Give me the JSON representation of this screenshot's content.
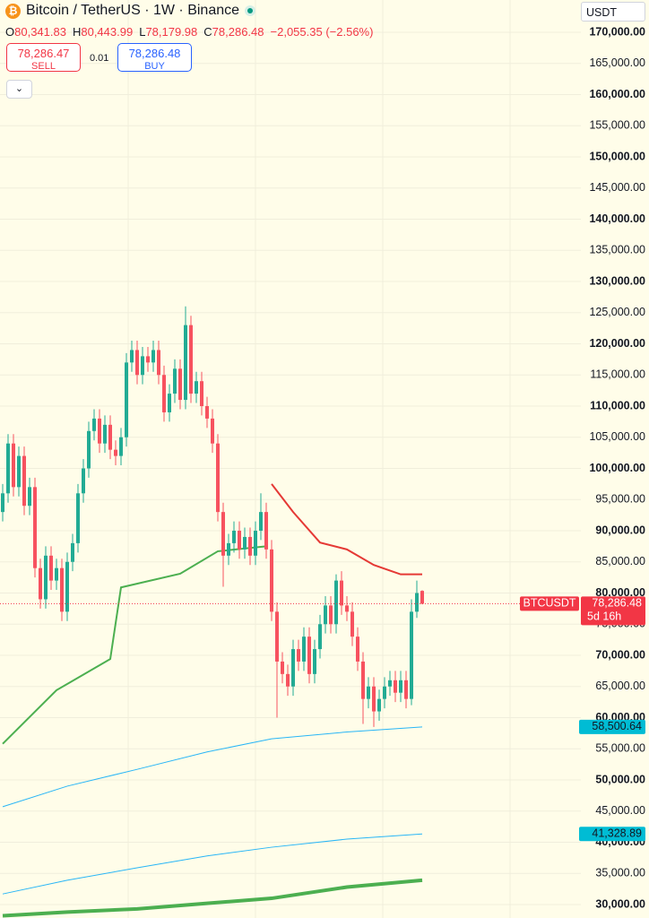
{
  "header": {
    "symbol": "Bitcoin / TetherUS · 1W · Binance",
    "ohlc": [
      {
        "label": "O",
        "value": "80,341.83"
      },
      {
        "label": "H",
        "value": "80,443.99"
      },
      {
        "label": "L",
        "value": "78,179.98"
      },
      {
        "label": "C",
        "value": "78,286.48"
      }
    ],
    "change": "−2,055.35 (−2.56%)"
  },
  "order": {
    "sell_price": "78,286.47",
    "sell_label": "SELL",
    "spread": "0.01",
    "buy_price": "78,286.48",
    "buy_label": "BUY"
  },
  "currency": "USDT",
  "chart_data": {
    "type": "candlestick",
    "up_color": "#22ab94",
    "down_color": "#f7525f",
    "grid": true,
    "open": [
      93000,
      96000,
      104000,
      97000,
      102000,
      94000,
      97000,
      84000,
      79000,
      86000,
      82000,
      84000,
      77000,
      85000,
      88000,
      96000,
      100000,
      106000,
      108000,
      104000,
      107000,
      103000,
      102000,
      105000,
      117000,
      119000,
      115000,
      118000,
      117000,
      119000,
      115000,
      109000,
      112000,
      116000,
      111000,
      123000,
      112000,
      114000,
      110000,
      108000,
      104000,
      93000,
      86000,
      88000,
      90000,
      87000,
      89000,
      86000,
      90000,
      93000,
      87000,
      77000,
      69000,
      67000,
      65000,
      71000,
      69000,
      73000,
      67000,
      71000,
      75000,
      78000,
      75000,
      82000,
      78000,
      77000,
      73000,
      69000,
      63000,
      65000,
      61000,
      63000,
      65000,
      66000,
      64000,
      66000,
      63000,
      77000,
      80341.83
    ],
    "high": [
      97500,
      105500,
      105500,
      103500,
      103500,
      98500,
      98500,
      85500,
      87500,
      87500,
      85500,
      85500,
      86500,
      89500,
      97500,
      101500,
      107500,
      109500,
      109500,
      108500,
      108500,
      104500,
      106500,
      118500,
      120500,
      120500,
      119500,
      119500,
      120500,
      120500,
      116500,
      113500,
      117500,
      117500,
      126000,
      124500,
      115500,
      115500,
      111500,
      109500,
      105500,
      94500,
      89500,
      91500,
      91500,
      90500,
      90500,
      91500,
      96000,
      94500,
      88500,
      78500,
      70500,
      68500,
      72500,
      72500,
      74500,
      74500,
      72500,
      76500,
      79500,
      79500,
      83000,
      83500,
      79500,
      78500,
      74500,
      70500,
      66500,
      66500,
      64500,
      66500,
      67500,
      67500,
      67500,
      67500,
      79000,
      82000,
      80443.99
    ],
    "low": [
      91500,
      94500,
      95500,
      95500,
      92500,
      92500,
      82500,
      77500,
      77500,
      80500,
      80500,
      75500,
      75500,
      83500,
      86500,
      94500,
      98500,
      104500,
      102500,
      102500,
      101500,
      100500,
      100500,
      103500,
      115500,
      113500,
      113500,
      115500,
      115500,
      113500,
      107500,
      107500,
      110500,
      109500,
      109500,
      110500,
      110500,
      108500,
      106500,
      102500,
      91500,
      81000,
      84500,
      86500,
      85500,
      85500,
      84500,
      84500,
      88500,
      85500,
      75500,
      60000,
      65500,
      63500,
      63500,
      67500,
      67500,
      65500,
      65500,
      69500,
      73500,
      73500,
      73500,
      76500,
      75500,
      71500,
      67500,
      59000,
      61500,
      58500,
      59500,
      61500,
      63500,
      62500,
      62500,
      61500,
      62000,
      76000,
      78179.98
    ],
    "close": [
      96000,
      104000,
      97000,
      102000,
      94000,
      97000,
      84000,
      79000,
      86000,
      82000,
      84000,
      77000,
      85000,
      88000,
      96000,
      100000,
      106000,
      108000,
      104000,
      107000,
      103000,
      102000,
      105000,
      117000,
      119000,
      115000,
      118000,
      117000,
      119000,
      115000,
      109000,
      112000,
      116000,
      111000,
      123000,
      112000,
      114000,
      110000,
      108000,
      104000,
      93000,
      86000,
      88000,
      90000,
      87000,
      89000,
      86000,
      90000,
      93000,
      87000,
      77000,
      69000,
      67000,
      65000,
      71000,
      69000,
      73000,
      67000,
      71000,
      75000,
      78000,
      75000,
      82000,
      78000,
      77000,
      73000,
      69000,
      63000,
      65000,
      61000,
      63000,
      65000,
      66000,
      64000,
      66000,
      63000,
      77000,
      80000,
      78286.48
    ],
    "ylim": [
      30000,
      170000
    ],
    "yticks": [
      {
        "value": 170000,
        "label": "170,000.00"
      },
      {
        "value": 165000,
        "label": "165,000.00"
      },
      {
        "value": 160000,
        "label": "160,000.00"
      },
      {
        "value": 155000,
        "label": "155,000.00"
      },
      {
        "value": 150000,
        "label": "150,000.00"
      },
      {
        "value": 145000,
        "label": "145,000.00"
      },
      {
        "value": 140000,
        "label": "140,000.00"
      },
      {
        "value": 135000,
        "label": "135,000.00"
      },
      {
        "value": 130000,
        "label": "130,000.00"
      },
      {
        "value": 125000,
        "label": "125,000.00"
      },
      {
        "value": 120000,
        "label": "120,000.00"
      },
      {
        "value": 115000,
        "label": "115,000.00"
      },
      {
        "value": 110000,
        "label": "110,000.00"
      },
      {
        "value": 105000,
        "label": "105,000.00"
      },
      {
        "value": 100000,
        "label": "100,000.00"
      },
      {
        "value": 95000,
        "label": "95,000.00"
      },
      {
        "value": 90000,
        "label": "90,000.00"
      },
      {
        "value": 85000,
        "label": "85,000.00"
      },
      {
        "value": 80000,
        "label": "80,000.00"
      },
      {
        "value": 75000,
        "label": "75,000.00"
      },
      {
        "value": 70000,
        "label": "70,000.00"
      },
      {
        "value": 65000,
        "label": "65,000.00"
      },
      {
        "value": 60000,
        "label": "60,000.00"
      },
      {
        "value": 55000,
        "label": "55,000.00"
      },
      {
        "value": 50000,
        "label": "50,000.00"
      },
      {
        "value": 45000,
        "label": "45,000.00"
      },
      {
        "value": 40000,
        "label": "40,000.00"
      },
      {
        "value": 35000,
        "label": "35,000.00"
      },
      {
        "value": 30000,
        "label": "30,000.00"
      }
    ],
    "overlays": [
      {
        "color": "#29b6f6",
        "width": 1,
        "x": [
          0,
          12,
          25,
          38,
          50,
          64,
          78
        ],
        "values": [
          45700,
          49000,
          51700,
          54500,
          56600,
          57700,
          58500
        ]
      },
      {
        "color": "#29b6f6",
        "width": 1,
        "x": [
          0,
          12,
          25,
          38,
          50,
          64,
          78
        ],
        "values": [
          31700,
          33900,
          35900,
          37800,
          39200,
          40500,
          41329
        ]
      },
      {
        "color": "#4caf50",
        "width": 4,
        "x": [
          0,
          12,
          25,
          38,
          50,
          64,
          78
        ],
        "values": [
          28200,
          28800,
          29300,
          30200,
          31000,
          32800,
          33900
        ]
      },
      {
        "color": "#e53935",
        "width": 2,
        "x": [
          50,
          54,
          59,
          64,
          69,
          74,
          78
        ],
        "values": [
          97500,
          93000,
          88100,
          87000,
          84500,
          83000,
          83000
        ]
      },
      {
        "color": "#4caf50",
        "width": 2,
        "x": [
          0,
          10,
          20,
          22,
          33,
          40,
          49
        ],
        "values": [
          55800,
          64400,
          69400,
          80900,
          83100,
          86700,
          87500
        ]
      }
    ],
    "price_labels": [
      {
        "name": "BTCUSDT",
        "value": 78286.48,
        "label": "78,286.48",
        "countdown": "5d 16h",
        "color": "#f23645"
      },
      {
        "value": 58500.64,
        "label": "58,500.64",
        "color": "#00bcd4"
      },
      {
        "value": 41328.89,
        "label": "41,328.89",
        "color": "#00bcd4"
      }
    ]
  }
}
